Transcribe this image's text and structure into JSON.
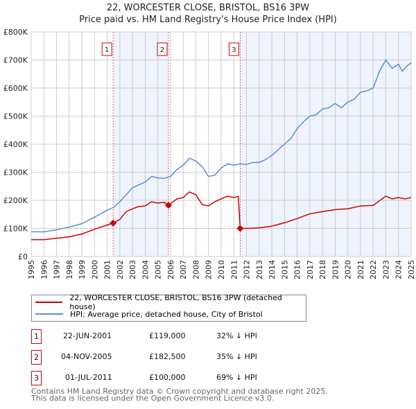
{
  "title": "22, WORCESTER CLOSE, BRISTOL, BS16 3PW",
  "subtitle": "Price paid vs. HM Land Registry's House Price Index (HPI)",
  "chart_data": {
    "type": "line",
    "title": "22, WORCESTER CLOSE, BRISTOL, BS16 3PW",
    "subtitle": "Price paid vs. HM Land Registry's House Price Index (HPI)",
    "xlim": [
      1995,
      2025
    ],
    "ylim": [
      0,
      800000
    ],
    "x_ticks": [
      "1995",
      "1996",
      "1997",
      "1998",
      "1999",
      "2000",
      "2001",
      "2002",
      "2003",
      "2004",
      "2005",
      "2006",
      "2007",
      "2008",
      "2009",
      "2010",
      "2011",
      "2012",
      "2013",
      "2014",
      "2015",
      "2016",
      "2017",
      "2018",
      "2019",
      "2020",
      "2021",
      "2022",
      "2023",
      "2024",
      "2025"
    ],
    "y_ticks": [
      {
        "v": 0,
        "label": "£0"
      },
      {
        "v": 100000,
        "label": "£100K"
      },
      {
        "v": 200000,
        "label": "£200K"
      },
      {
        "v": 300000,
        "label": "£300K"
      },
      {
        "v": 400000,
        "label": "£400K"
      },
      {
        "v": 500000,
        "label": "£500K"
      },
      {
        "v": 600000,
        "label": "£600K"
      },
      {
        "v": 700000,
        "label": "£700K"
      },
      {
        "v": 800000,
        "label": "£800K"
      }
    ],
    "grid": true,
    "series": [
      {
        "name": "22, WORCESTER CLOSE, BRISTOL, BS16 3PW (detached house)",
        "color": "#cc0000",
        "points": [
          [
            1995,
            60
          ],
          [
            1996,
            60
          ],
          [
            1997,
            65
          ],
          [
            1998,
            70
          ],
          [
            1999,
            80
          ],
          [
            2000,
            97
          ],
          [
            2001,
            112
          ],
          [
            2001.47,
            119
          ],
          [
            2002,
            132
          ],
          [
            2002.5,
            160
          ],
          [
            2003,
            170
          ],
          [
            2003.5,
            178
          ],
          [
            2004,
            180
          ],
          [
            2004.5,
            195
          ],
          [
            2005,
            190
          ],
          [
            2005.5,
            193
          ],
          [
            2005.84,
            182.5
          ],
          [
            2006.5,
            205
          ],
          [
            2007,
            210
          ],
          [
            2007.5,
            230
          ],
          [
            2008,
            220
          ],
          [
            2008.5,
            185
          ],
          [
            2009,
            180
          ],
          [
            2009.5,
            195
          ],
          [
            2010,
            205
          ],
          [
            2010.5,
            215
          ],
          [
            2011,
            210
          ],
          [
            2011.35,
            214
          ],
          [
            2011.5,
            100
          ],
          [
            2012,
            100
          ],
          [
            2013,
            102
          ],
          [
            2014,
            108
          ],
          [
            2015,
            120
          ],
          [
            2016,
            135
          ],
          [
            2017,
            152
          ],
          [
            2018,
            160
          ],
          [
            2019,
            167
          ],
          [
            2020,
            170
          ],
          [
            2021,
            180
          ],
          [
            2022,
            182
          ],
          [
            2023,
            215
          ],
          [
            2023.5,
            205
          ],
          [
            2024,
            210
          ],
          [
            2024.5,
            205
          ],
          [
            2025,
            210
          ]
        ]
      },
      {
        "name": "HPI: Average price, detached house, City of Bristol",
        "color": "#5b8dd0",
        "points": [
          [
            1995,
            88
          ],
          [
            1996,
            88
          ],
          [
            1997,
            95
          ],
          [
            1998,
            105
          ],
          [
            1999,
            117
          ],
          [
            2000,
            140
          ],
          [
            2001,
            165
          ],
          [
            2001.5,
            175
          ],
          [
            2002,
            195
          ],
          [
            2002.5,
            220
          ],
          [
            2003,
            245
          ],
          [
            2003.5,
            255
          ],
          [
            2004,
            265
          ],
          [
            2004.5,
            285
          ],
          [
            2005,
            280
          ],
          [
            2005.5,
            278
          ],
          [
            2006,
            285
          ],
          [
            2006.5,
            310
          ],
          [
            2007,
            325
          ],
          [
            2007.5,
            350
          ],
          [
            2008,
            340
          ],
          [
            2008.5,
            320
          ],
          [
            2009,
            285
          ],
          [
            2009.5,
            290
          ],
          [
            2010,
            315
          ],
          [
            2010.5,
            330
          ],
          [
            2011,
            325
          ],
          [
            2011.5,
            330
          ],
          [
            2012,
            328
          ],
          [
            2012.5,
            335
          ],
          [
            2013,
            335
          ],
          [
            2013.5,
            345
          ],
          [
            2014,
            360
          ],
          [
            2014.5,
            380
          ],
          [
            2015,
            400
          ],
          [
            2015.5,
            420
          ],
          [
            2016,
            455
          ],
          [
            2016.5,
            480
          ],
          [
            2017,
            500
          ],
          [
            2017.5,
            505
          ],
          [
            2018,
            525
          ],
          [
            2018.5,
            530
          ],
          [
            2019,
            545
          ],
          [
            2019.5,
            530
          ],
          [
            2020,
            550
          ],
          [
            2020.5,
            560
          ],
          [
            2021,
            585
          ],
          [
            2021.5,
            590
          ],
          [
            2022,
            600
          ],
          [
            2022.5,
            660
          ],
          [
            2023,
            700
          ],
          [
            2023.5,
            670
          ],
          [
            2024,
            685
          ],
          [
            2024.3,
            660
          ],
          [
            2024.7,
            680
          ],
          [
            2025,
            690
          ]
        ]
      }
    ],
    "y_unit": "thousands GBP",
    "sales": [
      {
        "label": "1",
        "x": 2001.47,
        "y": 119
      },
      {
        "label": "2",
        "x": 2005.84,
        "y": 182.5
      },
      {
        "label": "3",
        "x": 2011.5,
        "y": 100
      }
    ],
    "shaded_ranges": [
      [
        2001.47,
        2005.84
      ],
      [
        2011.5,
        2025
      ]
    ]
  },
  "legend": [
    {
      "label": "22, WORCESTER CLOSE, BRISTOL, BS16 3PW (detached house)",
      "color": "#cc0000"
    },
    {
      "label": "HPI: Average price, detached house, City of Bristol",
      "color": "#5b8dd0"
    }
  ],
  "transactions": [
    {
      "num": "1",
      "date": "22-JUN-2001",
      "price": "£119,000",
      "hpi": "32% ↓ HPI"
    },
    {
      "num": "2",
      "date": "04-NOV-2005",
      "price": "£182,500",
      "hpi": "35% ↓ HPI"
    },
    {
      "num": "3",
      "date": "01-JUL-2011",
      "price": "£100,000",
      "hpi": "69% ↓ HPI"
    }
  ],
  "footer": [
    "Contains HM Land Registry data © Crown copyright and database right 2025.",
    "This data is licensed under the Open Government Licence v3.0."
  ]
}
